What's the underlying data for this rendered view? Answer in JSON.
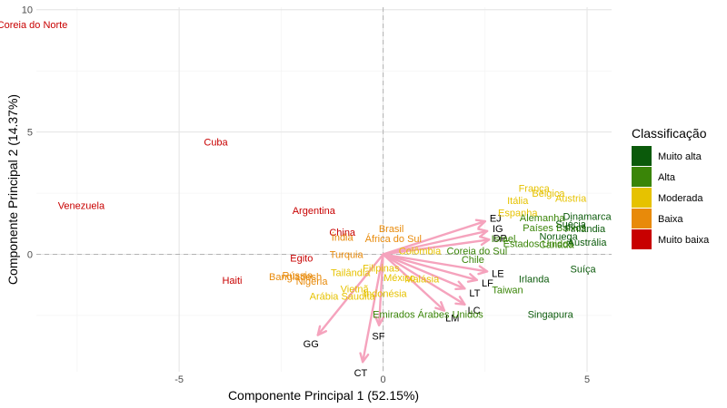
{
  "chart_data": {
    "type": "scatter",
    "title": "",
    "xlabel": "Componente Principal 1 (52.15%)",
    "ylabel": "Componente Principal 2 (14.37%)",
    "xlim": [
      -8.5,
      5.6
    ],
    "ylim": [
      -4.8,
      10.1
    ],
    "x_ticks": [
      -5,
      0,
      5
    ],
    "y_ticks": [
      0,
      5,
      10
    ],
    "x_tick_labels": [
      "-5",
      "0",
      "5"
    ],
    "y_tick_labels": [
      "0",
      "5",
      "10"
    ],
    "grid": true,
    "reference_lines": {
      "x": 0,
      "y": 0,
      "style": "dashed"
    },
    "legend": {
      "title": "Classificação",
      "position": "right",
      "entries": [
        {
          "label": "Muito alta",
          "color": "#0b5a0b"
        },
        {
          "label": "Alta",
          "color": "#3a8508"
        },
        {
          "label": "Moderada",
          "color": "#e6c200"
        },
        {
          "label": "Baixa",
          "color": "#e88a0a"
        },
        {
          "label": "Muito baixa",
          "color": "#c80000"
        }
      ]
    },
    "points": [
      {
        "label": "Coreia do Norte",
        "x": -8.6,
        "y": 9.4,
        "class": "Muito baixa"
      },
      {
        "label": "Cuba",
        "x": -4.1,
        "y": 4.6,
        "class": "Muito baixa"
      },
      {
        "label": "Venezuela",
        "x": -7.4,
        "y": 2.0,
        "class": "Muito baixa"
      },
      {
        "label": "Argentina",
        "x": -1.7,
        "y": 1.8,
        "class": "Muito baixa"
      },
      {
        "label": "China",
        "x": -1.0,
        "y": 0.9,
        "class": "Muito baixa"
      },
      {
        "label": "Egito",
        "x": -2.0,
        "y": -0.15,
        "class": "Muito baixa"
      },
      {
        "label": "Haiti",
        "x": -3.7,
        "y": -1.05,
        "class": "Muito baixa"
      },
      {
        "label": "Brasil",
        "x": 0.2,
        "y": 1.05,
        "class": "Baixa"
      },
      {
        "label": "Índia",
        "x": -1.0,
        "y": 0.7,
        "class": "Baixa"
      },
      {
        "label": "África do Sul",
        "x": 0.25,
        "y": 0.65,
        "class": "Baixa"
      },
      {
        "label": "Turquia",
        "x": -0.9,
        "y": 0.0,
        "class": "Baixa"
      },
      {
        "label": "Bangladesh",
        "x": -2.15,
        "y": -0.9,
        "class": "Baixa"
      },
      {
        "label": "Rússia",
        "x": -2.1,
        "y": -0.85,
        "class": "Baixa"
      },
      {
        "label": "Nigéria",
        "x": -1.75,
        "y": -1.1,
        "class": "Baixa"
      },
      {
        "label": "Colômbia",
        "x": 0.9,
        "y": 0.15,
        "class": "Moderada"
      },
      {
        "label": "Filipinas",
        "x": -0.05,
        "y": -0.55,
        "class": "Moderada"
      },
      {
        "label": "Tailândia",
        "x": -0.8,
        "y": -0.75,
        "class": "Moderada"
      },
      {
        "label": "México",
        "x": 0.4,
        "y": -0.95,
        "class": "Moderada"
      },
      {
        "label": "Malásia",
        "x": 0.95,
        "y": -1.0,
        "class": "Moderada"
      },
      {
        "label": "Vietnã",
        "x": -0.7,
        "y": -1.4,
        "class": "Moderada"
      },
      {
        "label": "Indonésia",
        "x": 0.05,
        "y": -1.6,
        "class": "Moderada"
      },
      {
        "label": "Arábia Saudita",
        "x": -1.0,
        "y": -1.7,
        "class": "Moderada"
      },
      {
        "label": "França",
        "x": 3.7,
        "y": 2.7,
        "class": "Moderada"
      },
      {
        "label": "Bélgica",
        "x": 4.05,
        "y": 2.5,
        "class": "Moderada"
      },
      {
        "label": "Áustria",
        "x": 4.6,
        "y": 2.3,
        "class": "Moderada"
      },
      {
        "label": "Itália",
        "x": 3.3,
        "y": 2.2,
        "class": "Moderada"
      },
      {
        "label": "Espanha",
        "x": 3.3,
        "y": 1.7,
        "class": "Moderada"
      },
      {
        "label": "Alemanha",
        "x": 3.9,
        "y": 1.5,
        "class": "Alta"
      },
      {
        "label": "Países Baixos",
        "x": 4.2,
        "y": 1.1,
        "class": "Alta"
      },
      {
        "label": "Israel",
        "x": 2.95,
        "y": 0.65,
        "class": "Alta"
      },
      {
        "label": "Estados Unidos",
        "x": 3.8,
        "y": 0.45,
        "class": "Alta"
      },
      {
        "label": "Canadá",
        "x": 4.25,
        "y": 0.4,
        "class": "Alta"
      },
      {
        "label": "Coreia do Sul",
        "x": 2.3,
        "y": 0.15,
        "class": "Alta"
      },
      {
        "label": "Chile",
        "x": 2.2,
        "y": -0.2,
        "class": "Alta"
      },
      {
        "label": "Emirados Árabes Unidos",
        "x": 1.1,
        "y": -2.45,
        "class": "Alta"
      },
      {
        "label": "Taiwan",
        "x": 3.05,
        "y": -1.45,
        "class": "Alta"
      },
      {
        "label": "Dinamarca",
        "x": 5.0,
        "y": 1.55,
        "class": "Muito alta"
      },
      {
        "label": "Suécia",
        "x": 4.6,
        "y": 1.25,
        "class": "Muito alta"
      },
      {
        "label": "Finlândia",
        "x": 4.95,
        "y": 1.05,
        "class": "Muito alta"
      },
      {
        "label": "Noruega",
        "x": 4.3,
        "y": 0.75,
        "class": "Muito alta"
      },
      {
        "label": "Austrália",
        "x": 5.0,
        "y": 0.5,
        "class": "Muito alta"
      },
      {
        "label": "Suíça",
        "x": 4.9,
        "y": -0.6,
        "class": "Muito alta"
      },
      {
        "label": "Irlanda",
        "x": 3.7,
        "y": -1.0,
        "class": "Muito alta"
      },
      {
        "label": "Singapura",
        "x": 4.1,
        "y": -2.45,
        "class": "Muito alta"
      }
    ],
    "vectors": [
      {
        "label": "EJ",
        "x": 2.5,
        "y": 1.35
      },
      {
        "label": "IG",
        "x": 2.55,
        "y": 0.95
      },
      {
        "label": "DP",
        "x": 2.6,
        "y": 0.6
      },
      {
        "label": "LE",
        "x": 2.55,
        "y": -0.7
      },
      {
        "label": "LF",
        "x": 2.3,
        "y": -1.05
      },
      {
        "label": "LT",
        "x": 2.0,
        "y": -1.4
      },
      {
        "label": "LC",
        "x": 2.0,
        "y": -2.05
      },
      {
        "label": "LM",
        "x": 1.5,
        "y": -2.3
      },
      {
        "label": "SF",
        "x": -0.1,
        "y": -2.9
      },
      {
        "label": "GG",
        "x": -1.6,
        "y": -3.3
      },
      {
        "label": "CT",
        "x": -0.5,
        "y": -4.4
      }
    ]
  }
}
